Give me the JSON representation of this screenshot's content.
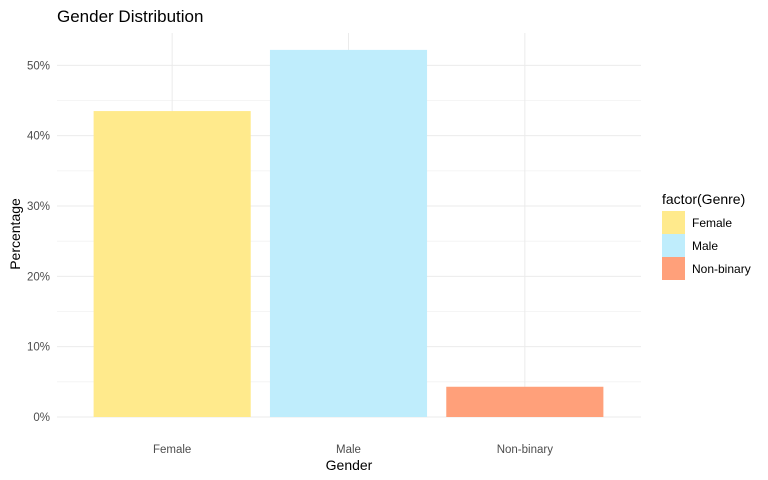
{
  "chart_data": {
    "type": "bar",
    "title": "Gender Distribution",
    "xlabel": "Gender",
    "ylabel": "Percentage",
    "categories": [
      "Female",
      "Male",
      "Non-binary"
    ],
    "values": [
      43.5,
      52.2,
      4.3
    ],
    "colors": [
      "#FFEA8C",
      "#BFEDFC",
      "#FFA07A"
    ],
    "ylim": [
      0,
      54.6
    ],
    "yticks": [
      0,
      10,
      20,
      30,
      40,
      50
    ],
    "ytick_labels": [
      "0%",
      "10%",
      "20%",
      "30%",
      "40%",
      "50%"
    ],
    "grid": true,
    "legend": {
      "title": "factor(Genre)",
      "position": "right",
      "entries": [
        "Female",
        "Male",
        "Non-binary"
      ]
    }
  }
}
